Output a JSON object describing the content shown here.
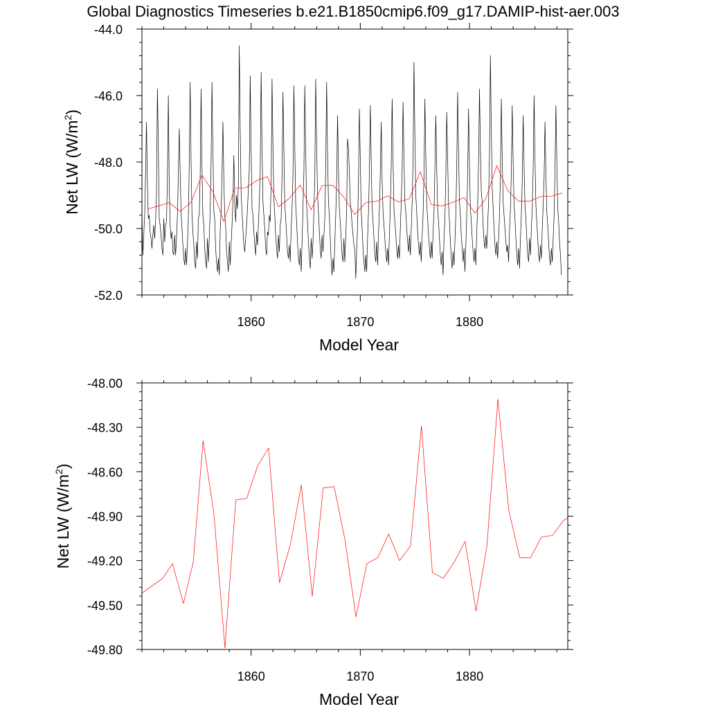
{
  "title": "Global Diagnostics Timeseries b.e21.B1850cmip6.f09_g17.DAMIP-hist-aer.003",
  "colors": {
    "monthly": "#000000",
    "annual": "#ff0000",
    "axis": "#000000"
  },
  "chart_data": [
    {
      "type": "line",
      "ylabel": "Net LW (W/m",
      "ylabel_sup": "2",
      "ylabel_end": ")",
      "xlabel": "Model Year",
      "xlim": [
        1850,
        1889
      ],
      "ylim": [
        -52.0,
        -44.0
      ],
      "yticks": [
        -52.0,
        -50.0,
        -48.0,
        -46.0,
        -44.0
      ],
      "ytick_labels": [
        "-52.0",
        "-50.0",
        "-48.0",
        "-46.0",
        "-44.0"
      ],
      "xticks": [
        1860,
        1870,
        1880
      ],
      "xtick_labels": [
        "1860",
        "1870",
        "1880"
      ],
      "grid": false,
      "series": [
        {
          "color": "#000000",
          "line_width": 0.7,
          "kind": "monthly",
          "x_start": 1850.0,
          "x_step": 0.08333,
          "values": [
            -49.5,
            -50.8,
            -50.2,
            -49.6,
            -48.3,
            -46.8,
            -48.6,
            -49.7,
            -49.6,
            -50.1,
            -50.3,
            -50.6,
            -50.2,
            -49.9,
            -50.3,
            -49.8,
            -48.9,
            -45.8,
            -47.4,
            -49.7,
            -49.9,
            -50.2,
            -50.6,
            -50.8,
            -49.7,
            -50.4,
            -49.9,
            -49.8,
            -48.5,
            -46.0,
            -48.7,
            -49.9,
            -50.3,
            -50.1,
            -50.7,
            -50.8,
            -50.2,
            -50.8,
            -50.3,
            -49.6,
            -48.4,
            -47.0,
            -48.3,
            -49.5,
            -50.0,
            -50.5,
            -50.9,
            -51.1,
            -50.6,
            -51.1,
            -50.5,
            -49.7,
            -48.1,
            -45.6,
            -47.9,
            -49.6,
            -50.1,
            -50.5,
            -51.0,
            -51.2,
            -50.4,
            -50.9,
            -49.7,
            -49.6,
            -48.4,
            -45.8,
            -48.2,
            -49.6,
            -49.9,
            -50.6,
            -51.0,
            -51.2,
            -50.3,
            -51.0,
            -50.3,
            -49.5,
            -48.0,
            -45.6,
            -47.6,
            -49.5,
            -49.7,
            -50.6,
            -51.0,
            -51.3,
            -50.9,
            -51.4,
            -50.1,
            -49.5,
            -48.4,
            -46.8,
            -48.5,
            -49.6,
            -49.9,
            -50.7,
            -51.0,
            -51.3,
            -50.4,
            -51.1,
            -50.5,
            -49.9,
            -49.2,
            -47.8,
            -49.2,
            -49.8,
            -49.0,
            -49.4,
            -48.7,
            -44.5,
            -47.0,
            -48.9,
            -49.5,
            -50.0,
            -50.5,
            -50.7,
            -50.3,
            -49.9,
            -49.4,
            -48.8,
            -48.2,
            -45.4,
            -47.6,
            -49.4,
            -49.6,
            -50.1,
            -50.5,
            -50.8,
            -50.1,
            -50.5,
            -49.9,
            -49.2,
            -48.3,
            -45.3,
            -47.5,
            -49.2,
            -49.6,
            -50.0,
            -50.6,
            -50.8,
            -50.1,
            -50.2,
            -49.6,
            -49.8,
            -48.6,
            -45.5,
            -47.5,
            -49.1,
            -49.6,
            -50.2,
            -50.6,
            -50.9,
            -50.2,
            -50.7,
            -49.9,
            -49.7,
            -48.4,
            -45.9,
            -47.6,
            -49.3,
            -49.7,
            -50.2,
            -50.7,
            -50.9,
            -50.5,
            -51.0,
            -50.0,
            -49.4,
            -48.4,
            -45.7,
            -47.5,
            -49.3,
            -49.8,
            -50.4,
            -50.9,
            -51.1,
            -50.6,
            -51.3,
            -50.4,
            -49.4,
            -48.3,
            -45.7,
            -47.7,
            -49.3,
            -49.8,
            -50.4,
            -50.9,
            -51.2,
            -50.3,
            -50.9,
            -50.4,
            -49.5,
            -48.4,
            -45.5,
            -47.5,
            -49.0,
            -49.5,
            -50.1,
            -50.6,
            -50.9,
            -50.2,
            -50.7,
            -50.2,
            -49.7,
            -48.2,
            -45.6,
            -47.7,
            -49.2,
            -49.6,
            -50.3,
            -51.0,
            -51.4,
            -50.9,
            -51.3,
            -50.4,
            -49.6,
            -48.6,
            -46.6,
            -48.2,
            -49.4,
            -49.8,
            -50.3,
            -50.8,
            -51.0,
            -50.3,
            -51.0,
            -50.3,
            -49.4,
            -47.3,
            -47.6,
            -48.3,
            -49.2,
            -49.5,
            -49.9,
            -50.2,
            -50.5,
            -50.6,
            -51.5,
            -50.7,
            -49.9,
            -48.6,
            -46.4,
            -47.9,
            -49.5,
            -50.0,
            -50.6,
            -51.0,
            -51.3,
            -50.8,
            -51.3,
            -50.3,
            -49.5,
            -48.3,
            -46.3,
            -48.0,
            -49.4,
            -49.8,
            -50.3,
            -50.8,
            -51.0,
            -50.4,
            -51.1,
            -50.2,
            -49.4,
            -48.3,
            -46.8,
            -48.6,
            -49.5,
            -49.9,
            -50.3,
            -50.7,
            -51.0,
            -50.6,
            -51.1,
            -50.2,
            -49.3,
            -48.1,
            -46.1,
            -48.0,
            -49.4,
            -49.8,
            -50.2,
            -50.6,
            -50.9,
            -50.5,
            -50.9,
            -50.0,
            -49.2,
            -48.2,
            -46.2,
            -47.9,
            -49.2,
            -49.5,
            -50.0,
            -50.4,
            -50.7,
            -50.2,
            -50.8,
            -50.0,
            -49.2,
            -47.9,
            -45.0,
            -47.2,
            -49.0,
            -49.5,
            -50.1,
            -50.5,
            -50.8,
            -50.4,
            -51.0,
            -50.2,
            -49.6,
            -48.4,
            -46.1,
            -47.8,
            -49.3,
            -49.7,
            -50.2,
            -50.6,
            -50.9,
            -50.4,
            -50.9,
            -50.1,
            -49.5,
            -48.2,
            -46.6,
            -48.2,
            -49.4,
            -49.8,
            -50.3,
            -50.8,
            -51.1,
            -50.7,
            -51.4,
            -50.3,
            -49.7,
            -48.4,
            -46.5,
            -47.9,
            -49.3,
            -49.8,
            -50.4,
            -50.9,
            -51.2,
            -50.7,
            -51.1,
            -50.4,
            -49.6,
            -48.1,
            -45.9,
            -47.7,
            -49.2,
            -49.6,
            -50.2,
            -50.6,
            -51.0,
            -50.6,
            -51.3,
            -50.5,
            -49.6,
            -48.4,
            -46.4,
            -48.1,
            -49.4,
            -49.8,
            -50.3,
            -50.7,
            -51.0,
            -50.6,
            -51.1,
            -50.1,
            -49.3,
            -48.0,
            -45.8,
            -47.6,
            -48.9,
            -49.2,
            -49.9,
            -50.4,
            -50.6,
            -50.2,
            -50.6,
            -49.9,
            -49.2,
            -47.7,
            -44.8,
            -47.0,
            -48.8,
            -49.4,
            -50.0,
            -50.5,
            -50.8,
            -50.4,
            -50.9,
            -50.3,
            -49.6,
            -48.4,
            -46.1,
            -47.9,
            -49.2,
            -49.6,
            -50.0,
            -50.4,
            -50.7,
            -50.5,
            -51.0,
            -50.1,
            -49.4,
            -48.3,
            -46.3,
            -48.0,
            -49.3,
            -49.7,
            -50.3,
            -50.8,
            -51.1,
            -50.6,
            -51.2,
            -50.3,
            -49.6,
            -48.6,
            -46.6,
            -48.1,
            -49.3,
            -49.7,
            -50.3,
            -50.8,
            -51.0,
            -50.3,
            -50.8,
            -50.0,
            -49.4,
            -48.2,
            -46.0,
            -47.9,
            -49.3,
            -49.8,
            -50.3,
            -50.8,
            -51.0,
            -50.5,
            -50.9,
            -50.0,
            -49.3,
            -48.5,
            -46.8,
            -48.3,
            -49.5,
            -49.9,
            -50.4,
            -50.9,
            -51.1,
            -50.6,
            -51.0,
            -50.3,
            -49.6,
            -48.2,
            -46.3,
            -48.0,
            -49.4,
            -49.8,
            -50.4,
            -50.8,
            -51.4
          ]
        },
        {
          "color": "#ff0000",
          "line_width": 0.7,
          "kind": "annual",
          "x": [
            1850.5,
            1851.5,
            1852.5,
            1853.5,
            1854.5,
            1855.5,
            1856.5,
            1857.5,
            1858.5,
            1859.5,
            1860.5,
            1861.5,
            1862.5,
            1863.5,
            1864.5,
            1865.5,
            1866.5,
            1867.5,
            1868.5,
            1869.5,
            1870.5,
            1871.5,
            1872.5,
            1873.5,
            1874.5,
            1875.5,
            1876.5,
            1877.5,
            1878.5,
            1879.5,
            1880.5,
            1881.5,
            1882.5,
            1883.5,
            1884.5,
            1885.5,
            1886.5,
            1887.5,
            1888.5
          ],
          "values": [
            -49.42,
            -49.32,
            -49.22,
            -49.49,
            -49.21,
            -48.39,
            -48.89,
            -49.79,
            -48.79,
            -48.78,
            -48.56,
            -48.44,
            -49.35,
            -49.09,
            -48.69,
            -49.44,
            -48.71,
            -48.7,
            -49.06,
            -49.58,
            -49.22,
            -49.18,
            -49.02,
            -49.2,
            -49.1,
            -48.29,
            -49.28,
            -49.32,
            -49.21,
            -49.07,
            -49.54,
            -49.1,
            -48.11,
            -48.86,
            -49.18,
            -49.18,
            -49.04,
            -49.03,
            -48.93
          ]
        }
      ]
    },
    {
      "type": "line",
      "ylabel": "Net LW (W/m",
      "ylabel_sup": "2",
      "ylabel_end": ")",
      "xlabel": "Model Year",
      "xlim": [
        1850,
        1889
      ],
      "ylim": [
        -49.8,
        -48.0
      ],
      "yticks": [
        -49.8,
        -49.5,
        -49.2,
        -48.9,
        -48.6,
        -48.3,
        -48.0
      ],
      "ytick_labels": [
        "-49.80",
        "-49.50",
        "-49.20",
        "-48.90",
        "-48.60",
        "-48.30",
        "-48.00"
      ],
      "xticks": [
        1860,
        1870,
        1880
      ],
      "xtick_labels": [
        "1860",
        "1870",
        "1880"
      ],
      "grid": false,
      "series": [
        {
          "color": "#ff0000",
          "line_width": 0.7,
          "kind": "annual",
          "x": [
            1850.0,
            1851.9,
            1852.8,
            1853.8,
            1854.7,
            1855.6,
            1856.6,
            1857.6,
            1858.6,
            1859.6,
            1860.6,
            1861.6,
            1862.6,
            1863.6,
            1864.6,
            1865.6,
            1866.6,
            1867.6,
            1868.6,
            1869.6,
            1870.6,
            1871.6,
            1872.6,
            1873.6,
            1874.6,
            1875.6,
            1876.6,
            1877.6,
            1878.6,
            1879.6,
            1880.6,
            1881.6,
            1882.6,
            1883.6,
            1884.6,
            1885.6,
            1886.6,
            1887.6,
            1888.6,
            1889.0
          ],
          "values": [
            -49.42,
            -49.32,
            -49.22,
            -49.49,
            -49.21,
            -48.39,
            -48.89,
            -49.79,
            -48.79,
            -48.78,
            -48.56,
            -48.44,
            -49.35,
            -49.09,
            -48.69,
            -49.44,
            -48.71,
            -48.7,
            -49.06,
            -49.58,
            -49.22,
            -49.18,
            -49.02,
            -49.2,
            -49.1,
            -48.29,
            -49.28,
            -49.32,
            -49.21,
            -49.07,
            -49.54,
            -49.1,
            -48.11,
            -48.86,
            -49.18,
            -49.18,
            -49.04,
            -49.03,
            -48.93,
            -48.91
          ]
        }
      ]
    }
  ]
}
